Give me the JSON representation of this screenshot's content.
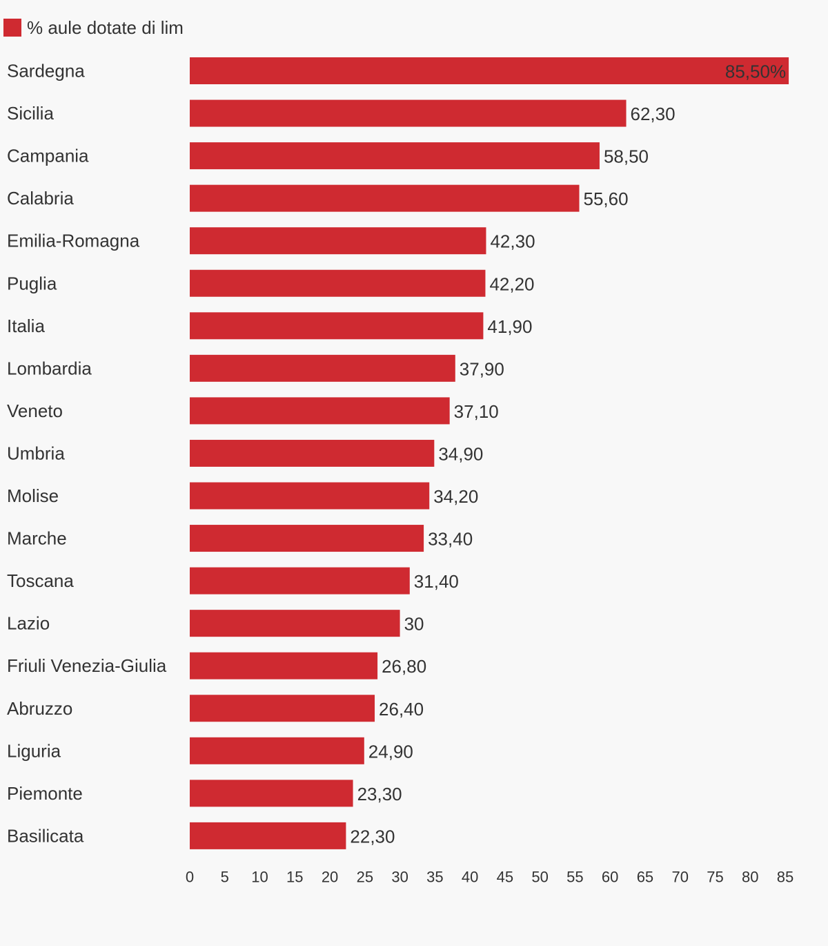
{
  "chart_data": {
    "type": "bar",
    "orientation": "horizontal",
    "legend": {
      "position": "top-left",
      "entries": [
        {
          "label": "% aule dotate di lim",
          "color": "#cf2a31"
        }
      ]
    },
    "series": [
      {
        "name": "% aule dotate di lim",
        "color": "#cf2a31"
      }
    ],
    "categories": [
      "Sardegna",
      "Sicilia",
      "Campania",
      "Calabria",
      "Emilia-Romagna",
      "Puglia",
      "Italia",
      "Lombardia",
      "Veneto",
      "Umbria",
      "Molise",
      "Marche",
      "Toscana",
      "Lazio",
      "Friuli Venezia-Giulia",
      "Abruzzo",
      "Liguria",
      "Piemonte",
      "Basilicata"
    ],
    "values": [
      85.5,
      62.3,
      58.5,
      55.6,
      42.3,
      42.2,
      41.9,
      37.9,
      37.1,
      34.9,
      34.2,
      33.4,
      31.4,
      30,
      26.8,
      26.4,
      24.9,
      23.3,
      22.3
    ],
    "value_labels": [
      "85,50%",
      "62,30",
      "58,50",
      "55,60",
      "42,30",
      "42,20",
      "41,90",
      "37,90",
      "37,10",
      "34,90",
      "34,20",
      "33,40",
      "31,40",
      "30",
      "26,80",
      "26,40",
      "24,90",
      "23,30",
      "22,30"
    ],
    "x_ticks": [
      "0",
      "5",
      "10",
      "15",
      "20",
      "25",
      "30",
      "35",
      "40",
      "45",
      "50",
      "55",
      "60",
      "65",
      "70",
      "75",
      "80",
      "85"
    ],
    "xlim": [
      0,
      85
    ],
    "grid": false,
    "title": "",
    "xlabel": "",
    "ylabel": ""
  }
}
